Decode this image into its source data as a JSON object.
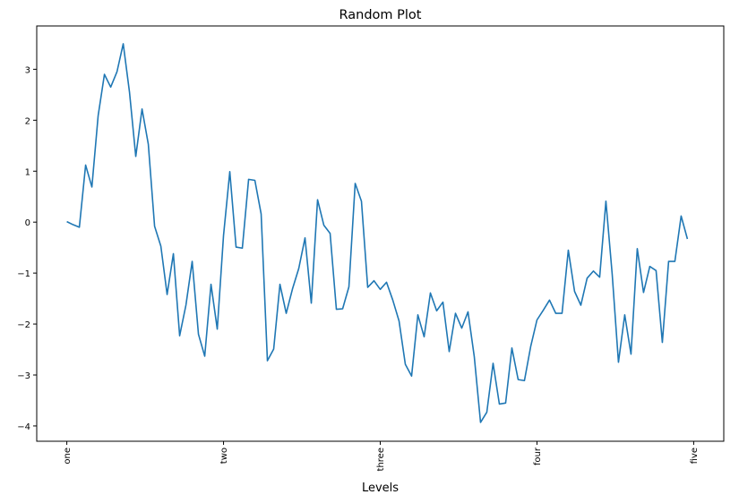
{
  "chart_data": {
    "type": "line",
    "title": "Random Plot",
    "xlabel": "Levels",
    "ylabel": "",
    "xticks": [
      {
        "value": 0,
        "label": "one"
      },
      {
        "value": 25,
        "label": "two"
      },
      {
        "value": 50,
        "label": "three"
      },
      {
        "value": 75,
        "label": "four"
      },
      {
        "value": 100,
        "label": "five"
      }
    ],
    "yticks": [
      -4,
      -3,
      -2,
      -1,
      0,
      1,
      2,
      3
    ],
    "xlim": [
      -4.8,
      104.8
    ],
    "ylim": [
      -4.3,
      3.85
    ],
    "grid": false,
    "line_color": "#1f77b4",
    "series": [
      {
        "x": [
          0,
          1,
          2,
          3,
          4,
          5,
          6,
          7,
          8,
          9,
          10,
          11,
          12,
          13,
          14,
          15,
          16,
          17,
          18,
          19,
          20,
          21,
          22,
          23,
          24,
          25,
          26,
          27,
          28,
          29,
          30,
          31,
          32,
          33,
          34,
          35,
          36,
          37,
          38,
          39,
          40,
          41,
          42,
          43,
          44,
          45,
          46,
          47,
          48,
          49,
          50,
          51,
          52,
          53,
          54,
          55,
          56,
          57,
          58,
          59,
          60,
          61,
          62,
          63,
          64,
          65,
          66,
          67,
          68,
          69,
          70,
          71,
          72,
          73,
          74,
          75,
          76,
          77,
          78,
          79,
          80,
          81,
          82,
          83,
          84,
          85,
          86,
          87,
          88,
          89,
          90,
          91,
          92,
          93,
          94,
          95,
          96,
          97,
          98,
          99
        ],
        "values": [
          0.01,
          -0.05,
          -0.1,
          1.12,
          0.69,
          2.09,
          2.9,
          2.65,
          2.95,
          3.5,
          2.55,
          1.29,
          2.22,
          1.53,
          -0.08,
          -0.47,
          -1.42,
          -0.62,
          -2.23,
          -1.63,
          -0.77,
          -2.2,
          -2.63,
          -1.22,
          -2.1,
          -0.26,
          0.99,
          -0.49,
          -0.51,
          0.84,
          0.82,
          0.16,
          -2.72,
          -2.49,
          -1.22,
          -1.79,
          -1.31,
          -0.91,
          -0.31,
          -1.59,
          0.44,
          -0.06,
          -0.22,
          -1.71,
          -1.7,
          -1.27,
          0.76,
          0.41,
          -1.28,
          -1.15,
          -1.32,
          -1.18,
          -1.53,
          -1.94,
          -2.79,
          -3.02,
          -1.82,
          -2.25,
          -1.39,
          -1.74,
          -1.57,
          -2.54,
          -1.79,
          -2.08,
          -1.76,
          -2.64,
          -3.93,
          -3.73,
          -2.77,
          -3.57,
          -3.55,
          -2.47,
          -3.09,
          -3.11,
          -2.44,
          -1.92,
          -1.73,
          -1.53,
          -1.79,
          -1.79,
          -0.55,
          -1.36,
          -1.63,
          -1.1,
          -0.96,
          -1.08,
          0.41,
          -1.02,
          -2.75,
          -1.82,
          -2.59,
          -0.52,
          -1.38,
          -0.87,
          -0.95,
          -2.36,
          -0.77,
          -0.77,
          0.12,
          -0.33
        ]
      }
    ]
  }
}
